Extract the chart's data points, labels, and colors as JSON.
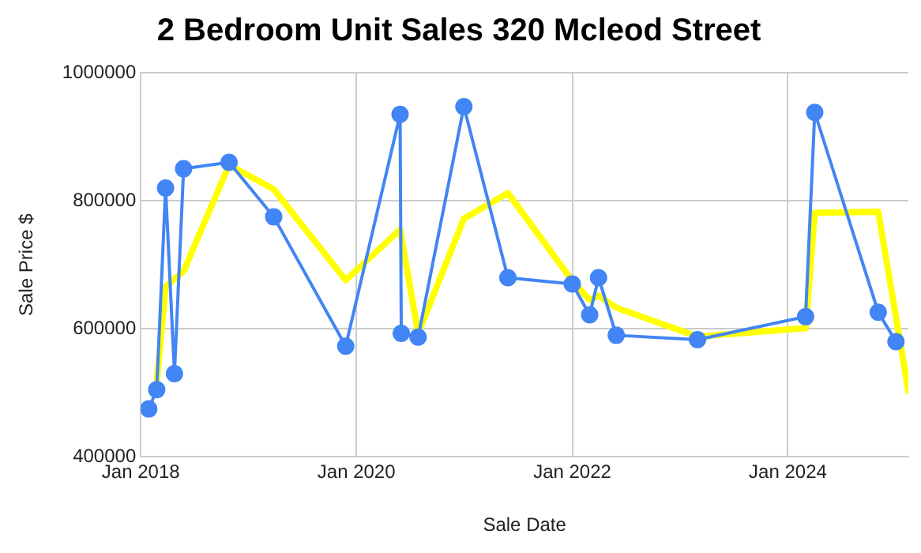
{
  "chart_data": {
    "type": "line",
    "title": "2 Bedroom Unit Sales 320 Mcleod Street",
    "xlabel": "Sale Date",
    "ylabel": "Sale Price $",
    "xlim": [
      "2018-01-01",
      "2025-02-12"
    ],
    "xticks": [
      {
        "value": "2018-01-01",
        "label": "Jan 2018"
      },
      {
        "value": "2020-01-01",
        "label": "Jan 2020"
      },
      {
        "value": "2022-01-01",
        "label": "Jan 2022"
      },
      {
        "value": "2024-01-01",
        "label": "Jan 2024"
      }
    ],
    "ylim": [
      400000,
      1000000
    ],
    "yticks": [
      400000,
      600000,
      800000,
      1000000
    ],
    "grid": true,
    "legend": false,
    "series": [
      {
        "color": "#4285f4",
        "marker": "circle",
        "x": [
          "2018-01-28",
          "2018-02-24",
          "2018-03-26",
          "2018-04-25",
          "2018-05-26",
          "2018-10-27",
          "2019-03-27",
          "2019-11-26",
          "2020-05-28",
          "2020-06-01",
          "2020-07-28",
          "2020-12-30",
          "2021-05-28",
          "2022-01-01",
          "2022-03-01",
          "2022-03-31",
          "2022-05-30",
          "2023-03-01",
          "2024-03-01",
          "2024-04-01",
          "2024-11-02",
          "2025-01-01"
        ],
        "values": [
          475000,
          505000,
          820000,
          530000,
          850000,
          860000,
          775000,
          573000,
          935000,
          593000,
          587000,
          947000,
          680000,
          670000,
          622000,
          680000,
          590000,
          583000,
          619000,
          938000,
          626000,
          580000
        ]
      },
      {
        "color": "#ffff00",
        "marker": "none",
        "x": [
          "2018-02-24",
          "2018-03-26",
          "2018-05-26",
          "2018-10-27",
          "2019-03-27",
          "2019-11-26",
          "2020-05-28",
          "2020-07-28",
          "2020-12-30",
          "2021-05-28",
          "2022-01-01",
          "2022-03-01",
          "2022-03-31",
          "2022-05-30",
          "2023-03-01",
          "2024-03-01",
          "2024-04-01",
          "2024-11-02",
          "2025-02-12"
        ],
        "values": [
          515000,
          666000,
          690000,
          856000,
          818000,
          676000,
          755000,
          593000,
          772000,
          812000,
          675000,
          645000,
          652000,
          633000,
          588000,
          601000,
          781000,
          783000,
          503000
        ]
      }
    ]
  }
}
